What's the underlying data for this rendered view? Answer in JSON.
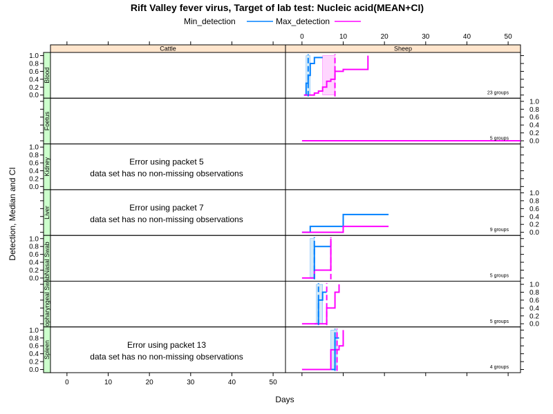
{
  "chart_data": {
    "type": "line",
    "title": "Rift Valley fever virus, Target of lab test: Nucleic acid(MEAN+CI)",
    "xlabel": "Days",
    "ylabel": "Detection, Median and CI",
    "xlim": [
      -4,
      53
    ],
    "ylim": [
      -0.08,
      1.08
    ],
    "x_ticks": [
      0,
      10,
      20,
      30,
      40,
      50
    ],
    "y_ticks": [
      0.0,
      0.2,
      0.4,
      0.6,
      0.8,
      1.0
    ],
    "legend": {
      "placement": "top",
      "entries": [
        {
          "name": "Min_detection",
          "color": "#0080ff"
        },
        {
          "name": "Max_detection",
          "color": "#ff00ff"
        }
      ]
    },
    "columns": [
      "Cattle",
      "Sheep"
    ],
    "rows": [
      "Blood",
      "Foetus",
      "Kidney",
      "Liver",
      "Nasal Swab",
      "Oropharyngeal Swab",
      "Spleen"
    ],
    "panels": [
      {
        "column": "Sheep",
        "row": "Blood",
        "groups_label": "23 groups",
        "series": [
          {
            "name": "Min_detection",
            "color": "#0080ff",
            "x": [
              0.5,
              1.0,
              1.5,
              2.0,
              3.0,
              5.0
            ],
            "y": [
              0.0,
              0.3,
              0.5,
              0.8,
              0.95,
              0.95
            ]
          },
          {
            "name": "Max_detection",
            "color": "#ff00ff",
            "x": [
              0.5,
              3.0,
              4.0,
              5.0,
              6.0,
              7.0,
              8.0,
              10.0,
              16.0
            ],
            "y": [
              0.0,
              0.05,
              0.1,
              0.2,
              0.35,
              0.4,
              0.6,
              0.65,
              1.0
            ]
          }
        ],
        "median_lines": [
          {
            "series": "Min_detection",
            "x": 1.5
          },
          {
            "series": "Max_detection",
            "x": 8.0
          }
        ],
        "ci_bands": [
          {
            "series": "Min_detection",
            "x": [
              1.0,
              2.0
            ]
          },
          {
            "series": "Max_detection",
            "x": [
              5.0,
              8.0
            ]
          }
        ]
      },
      {
        "column": "Sheep",
        "row": "Foetus",
        "groups_label": "5 groups",
        "series": [
          {
            "name": "Max_detection",
            "color": "#ff00ff",
            "x": [
              0.0,
              53.0
            ],
            "y": [
              0.0,
              0.0
            ]
          }
        ]
      },
      {
        "column": "Sheep",
        "row": "Liver",
        "groups_label": "9 groups",
        "series": [
          {
            "name": "Min_detection",
            "color": "#0080ff",
            "x": [
              0.0,
              2.0,
              10.0,
              21.0
            ],
            "y": [
              0.0,
              0.15,
              0.45,
              0.45
            ]
          },
          {
            "name": "Max_detection",
            "color": "#ff00ff",
            "x": [
              0.0,
              10.0,
              21.0
            ],
            "y": [
              0.0,
              0.15,
              0.15
            ]
          }
        ]
      },
      {
        "column": "Sheep",
        "row": "Nasal Swab",
        "groups_label": "5 groups",
        "series": [
          {
            "name": "Min_detection",
            "color": "#0080ff",
            "x": [
              2.0,
              3.0,
              7.0
            ],
            "y": [
              0.0,
              0.8,
              0.8
            ]
          },
          {
            "name": "Max_detection",
            "color": "#ff00ff",
            "x": [
              0.0,
              3.0,
              7.0
            ],
            "y": [
              0.0,
              0.2,
              1.0
            ]
          }
        ],
        "median_lines": [
          {
            "series": "Min_detection",
            "x": 3.0
          },
          {
            "series": "Max_detection",
            "x": 7.0
          }
        ],
        "ci_bands": [
          {
            "series": "Min_detection",
            "x": [
              2.0,
              3.0
            ]
          }
        ]
      },
      {
        "column": "Sheep",
        "row": "Oropharyngeal Swab",
        "groups_label": "5 groups",
        "series": [
          {
            "name": "Min_detection",
            "color": "#0080ff",
            "x": [
              3.0,
              4.0,
              5.0,
              6.0
            ],
            "y": [
              0.0,
              0.6,
              0.8,
              0.8
            ]
          },
          {
            "name": "Max_detection",
            "color": "#ff00ff",
            "x": [
              0.0,
              6.0,
              8.0,
              9.0
            ],
            "y": [
              0.0,
              0.4,
              0.8,
              1.0
            ]
          }
        ],
        "median_lines": [
          {
            "series": "Min_detection",
            "x": 4.0
          },
          {
            "series": "Max_detection",
            "x": 6.0
          }
        ],
        "ci_bands": [
          {
            "series": "Min_detection",
            "x": [
              3.5,
              5.0
            ]
          }
        ]
      },
      {
        "column": "Sheep",
        "row": "Spleen",
        "groups_label": "4 groups",
        "series": [
          {
            "name": "Min_detection",
            "color": "#0080ff",
            "x": [
              7.0,
              8.0,
              9.0
            ],
            "y": [
              0.0,
              0.8,
              0.8
            ]
          },
          {
            "name": "Max_detection",
            "color": "#ff00ff",
            "x": [
              0.0,
              7.0,
              8.0,
              9.0,
              10.0
            ],
            "y": [
              0.0,
              0.5,
              0.5,
              0.6,
              1.0
            ]
          }
        ],
        "median_lines": [
          {
            "series": "Min_detection",
            "x": 8.0
          },
          {
            "series": "Max_detection",
            "x": 8.5
          }
        ],
        "ci_bands": [
          {
            "series": "Min_detection",
            "x": [
              7.0,
              8.5
            ]
          }
        ]
      }
    ],
    "errors": [
      {
        "column": "Cattle",
        "row": "Kidney",
        "line1": "Error using packet 5",
        "line2": "data set has no non-missing observations"
      },
      {
        "column": "Cattle",
        "row": "Liver",
        "line1": "Error using packet 7",
        "line2": "data set has no non-missing observations"
      },
      {
        "column": "Cattle",
        "row": "Spleen",
        "line1": "Error using packet 13",
        "line2": "data set has no non-missing observations"
      }
    ],
    "y_axis_sides": [
      "left",
      "right",
      "left",
      "right",
      "left",
      "right",
      "left"
    ],
    "colors": {
      "strip_column": "#ffe5cc",
      "strip_row": "#ccffcc",
      "min_band": "#cde7f5",
      "max_band": "#ffccff"
    }
  }
}
